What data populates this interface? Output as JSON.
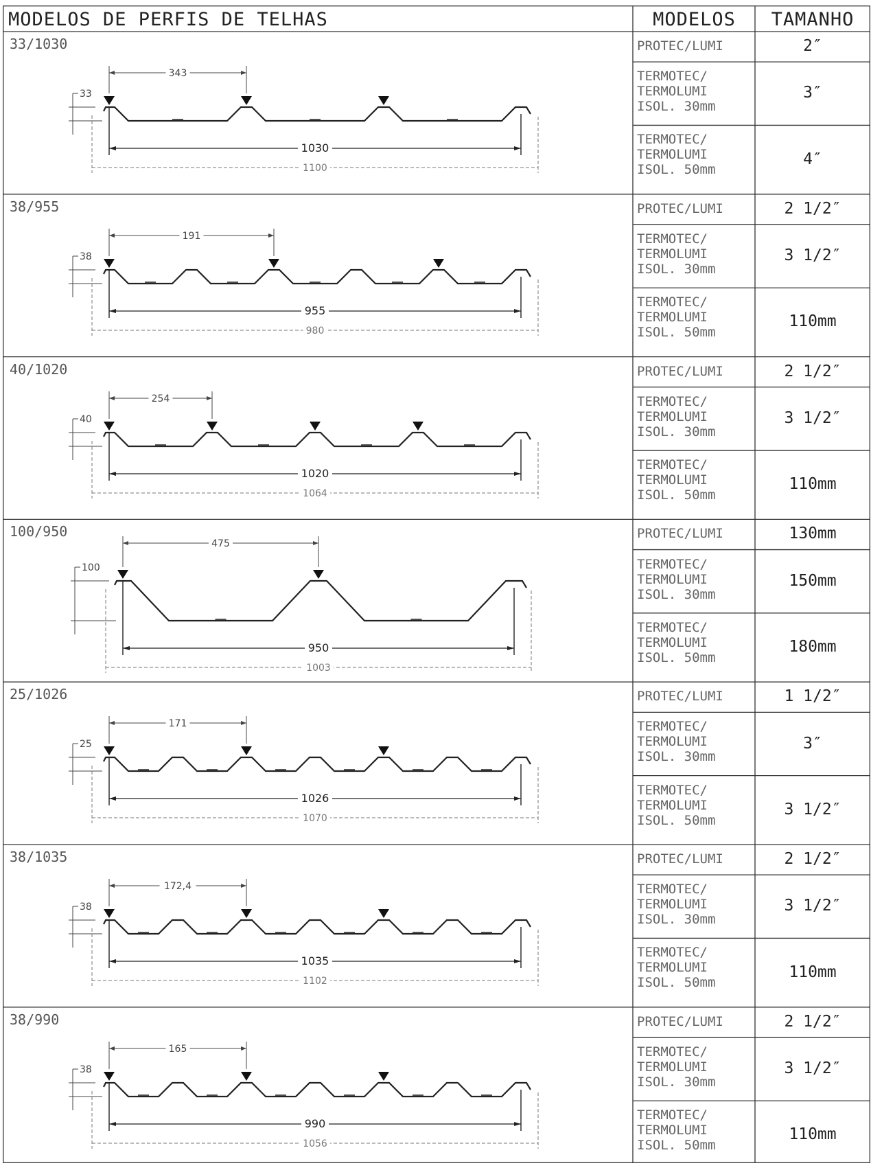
{
  "header": {
    "title": "MODELOS DE PERFIS DE TELHAS",
    "col_models": "MODELOS",
    "col_size": "TAMANHO"
  },
  "rows": [
    {
      "code": "33/1030",
      "pitch": "343",
      "height": "33",
      "useful": "1030",
      "total": "1100",
      "ribs": 4,
      "trapezoid": false,
      "models": [
        "PROTEC/LUMI",
        "TERMOTEC/\nTERMOLUMI\nISOL. 30mm",
        "TERMOTEC/\nTERMOLUMI\nISOL. 50mm"
      ],
      "sizes": [
        "2″",
        "3″",
        "4″"
      ]
    },
    {
      "code": "38/955",
      "pitch": "191",
      "height": "38",
      "useful": "955",
      "total": "980",
      "ribs": 6,
      "trapezoid": false,
      "models": [
        "PROTEC/LUMI",
        "TERMOTEC/\nTERMOLUMI\nISOL. 30mm",
        "TERMOTEC/\nTERMOLUMI\nISOL. 50mm"
      ],
      "sizes": [
        "2 1/2″",
        "3 1/2″",
        "110mm"
      ]
    },
    {
      "code": "40/1020",
      "pitch": "254",
      "height": "40",
      "useful": "1020",
      "total": "1064",
      "ribs": 5,
      "trapezoid": false,
      "models": [
        "PROTEC/LUMI",
        "TERMOTEC/\nTERMOLUMI\nISOL. 30mm",
        "TERMOTEC/\nTERMOLUMI\nISOL. 50mm"
      ],
      "sizes": [
        "2 1/2″",
        "3 1/2″",
        "110mm"
      ]
    },
    {
      "code": "100/950",
      "pitch": "475",
      "height": "100",
      "useful": "950",
      "total": "1003",
      "ribs": 3,
      "trapezoid": true,
      "models": [
        "PROTEC/LUMI",
        "TERMOTEC/\nTERMOLUMI\nISOL. 30mm",
        "TERMOTEC/\nTERMOLUMI\nISOL. 50mm"
      ],
      "sizes": [
        "130mm",
        "150mm",
        "180mm"
      ]
    },
    {
      "code": "25/1026",
      "pitch": "171",
      "height": "25",
      "useful": "1026",
      "total": "1070",
      "ribs": 7,
      "trapezoid": false,
      "models": [
        "PROTEC/LUMI",
        "TERMOTEC/\nTERMOLUMI\nISOL. 30mm",
        "TERMOTEC/\nTERMOLUMI\nISOL. 50mm"
      ],
      "sizes": [
        "1 1/2″",
        "3″",
        "3 1/2″"
      ]
    },
    {
      "code": "38/1035",
      "pitch": "172,4",
      "height": "38",
      "useful": "1035",
      "total": "1102",
      "ribs": 7,
      "trapezoid": false,
      "models": [
        "PROTEC/LUMI",
        "TERMOTEC/\nTERMOLUMI\nISOL. 30mm",
        "TERMOTEC/\nTERMOLUMI\nISOL. 50mm"
      ],
      "sizes": [
        "2 1/2″",
        "3 1/2″",
        "110mm"
      ]
    },
    {
      "code": "38/990",
      "pitch": "165",
      "height": "38",
      "useful": "990",
      "total": "1056",
      "ribs": 7,
      "trapezoid": false,
      "models": [
        "PROTEC/LUMI",
        "TERMOTEC/\nTERMOLUMI\nISOL. 30mm",
        "TERMOTEC/\nTERMOLUMI\nISOL. 50mm"
      ],
      "sizes": [
        "2 1/2″",
        "3 1/2″",
        "110mm"
      ]
    }
  ]
}
